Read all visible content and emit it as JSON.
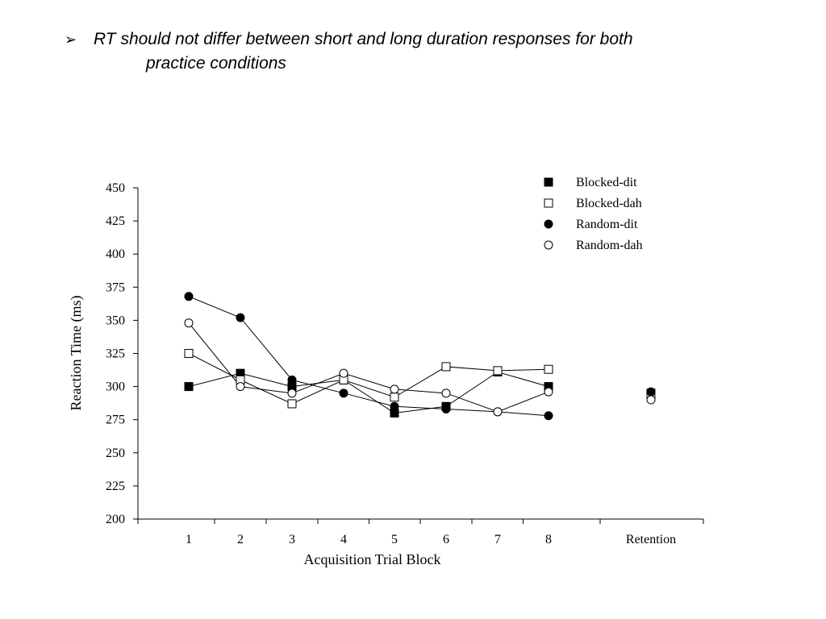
{
  "slide": {
    "bullet_glyph": "➢",
    "bullet_line1": "RT should not differ between short and long duration responses for both",
    "bullet_line2": "practice conditions"
  },
  "chart_data": {
    "type": "line",
    "xlabel": "Acquisition Trial Block",
    "ylabel": "Reaction Time (ms)",
    "ylim": [
      200,
      450
    ],
    "yticks": [
      200,
      225,
      250,
      275,
      300,
      325,
      350,
      375,
      400,
      425,
      450
    ],
    "categories": [
      "1",
      "2",
      "3",
      "4",
      "5",
      "6",
      "7",
      "8",
      "Retention"
    ],
    "grid": false,
    "legend_position": "top-right",
    "series": [
      {
        "name": "Blocked-dit",
        "marker": "square-filled",
        "values": [
          300,
          310,
          300,
          305,
          280,
          285,
          311,
          300,
          295
        ]
      },
      {
        "name": "Blocked-dah",
        "marker": "square-open",
        "values": [
          325,
          305,
          287,
          305,
          292,
          315,
          312,
          313,
          294
        ]
      },
      {
        "name": "Random-dit",
        "marker": "circle-filled",
        "values": [
          368,
          352,
          305,
          295,
          285,
          283,
          281,
          278,
          296
        ]
      },
      {
        "name": "Random-dah",
        "marker": "circle-open",
        "values": [
          348,
          300,
          295,
          310,
          298,
          295,
          281,
          296,
          290
        ]
      }
    ],
    "line_breaks_before": [
      "Retention"
    ]
  }
}
